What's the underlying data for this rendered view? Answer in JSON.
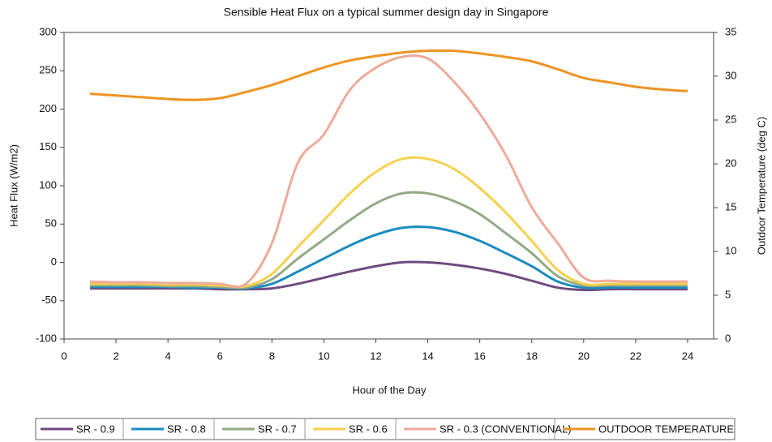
{
  "chart_data": {
    "type": "line",
    "title": "Sensible Heat Flux on a typical summer design day in Singapore",
    "x_label": "Hour of the Day",
    "y_label": "Heat Flux (W/m2)",
    "y2_label": "Outdoor Temperature (deg C)",
    "x": [
      1,
      2,
      3,
      4,
      5,
      6,
      7,
      8,
      9,
      10,
      11,
      12,
      13,
      14,
      15,
      16,
      17,
      18,
      19,
      20,
      21,
      22,
      23,
      24
    ],
    "xlim": [
      0,
      25
    ],
    "xticks": [
      0,
      2,
      4,
      6,
      8,
      10,
      12,
      14,
      16,
      18,
      20,
      22,
      24
    ],
    "ylim": [
      -100,
      300
    ],
    "yticks": [
      -100,
      -50,
      0,
      50,
      100,
      150,
      200,
      250,
      300
    ],
    "y2lim": [
      0,
      35
    ],
    "y2ticks": [
      0,
      5,
      10,
      15,
      20,
      25,
      30,
      35
    ],
    "legend": "bottom",
    "series": [
      {
        "name": "SR - 0.9",
        "color": "#6e4a7e",
        "values": [
          -34,
          -34,
          -34,
          -34,
          -34,
          -35,
          -35,
          -34,
          -28,
          -20,
          -12,
          -5,
          0,
          0,
          -3,
          -8,
          -15,
          -24,
          -33,
          -36,
          -35,
          -35,
          -35,
          -35
        ]
      },
      {
        "name": "SR - 0.8",
        "color": "#1a8bc0",
        "values": [
          -32,
          -32,
          -32,
          -32,
          -33,
          -33,
          -34,
          -28,
          -12,
          5,
          22,
          36,
          45,
          46,
          40,
          28,
          12,
          -5,
          -25,
          -33,
          -33,
          -33,
          -33,
          -33
        ]
      },
      {
        "name": "SR - 0.7",
        "color": "#93a985",
        "values": [
          -30,
          -30,
          -30,
          -31,
          -31,
          -32,
          -33,
          -22,
          5,
          30,
          55,
          77,
          90,
          90,
          80,
          63,
          38,
          12,
          -18,
          -30,
          -30,
          -30,
          -30,
          -30
        ]
      },
      {
        "name": "SR - 0.6",
        "color": "#f7d04e",
        "values": [
          -28,
          -28,
          -28,
          -29,
          -29,
          -30,
          -31,
          -15,
          20,
          55,
          90,
          118,
          135,
          135,
          122,
          97,
          65,
          28,
          -10,
          -28,
          -28,
          -28,
          -28,
          -28
        ]
      },
      {
        "name": "SR - 0.3 (CONVENTIONAL)",
        "color": "#eeaa9a",
        "values": [
          -25,
          -26,
          -26,
          -27,
          -27,
          -28,
          -28,
          25,
          130,
          167,
          225,
          254,
          268,
          266,
          236,
          194,
          140,
          72,
          25,
          -20,
          -24,
          -25,
          -25,
          -25
        ]
      },
      {
        "name": "OUTDOOR TEMPERATURE",
        "color": "#ee9422",
        "axis": "y2",
        "values": [
          28.0,
          27.8,
          27.6,
          27.4,
          27.3,
          27.5,
          28.2,
          29,
          30,
          31,
          31.8,
          32.3,
          32.7,
          32.9,
          32.9,
          32.6,
          32.2,
          31.7,
          30.8,
          29.8,
          29.3,
          28.8,
          28.5,
          28.3
        ]
      }
    ]
  }
}
